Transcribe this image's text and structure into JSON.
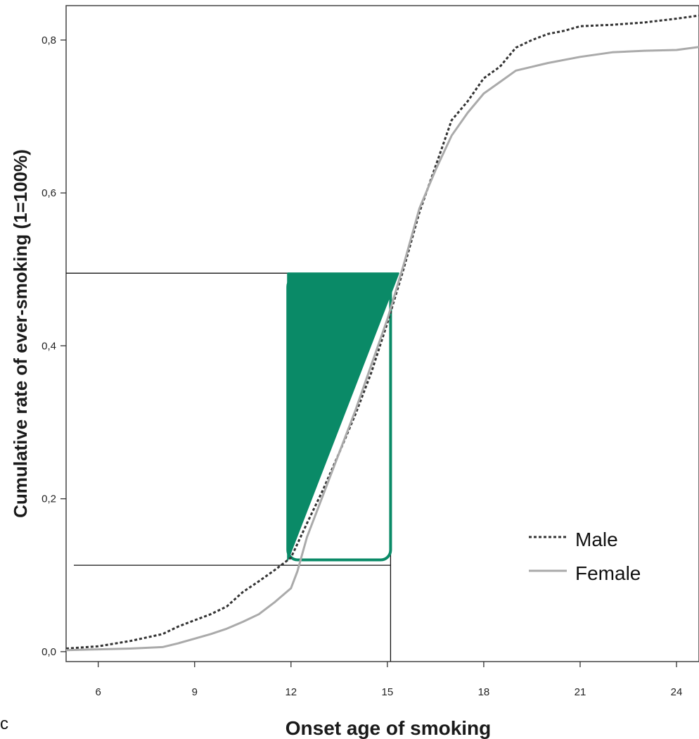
{
  "chart_data": {
    "type": "line",
    "xlabel": "Onset age of smoking",
    "ylabel": "Cumulative rate of ever-smoking (1=100%)",
    "xlim": [
      5.0,
      24.7
    ],
    "ylim": [
      -0.013,
      0.845
    ],
    "x_ticks": [
      6,
      9,
      12,
      15,
      18,
      21,
      24
    ],
    "x_tick_labels": [
      "6",
      "9",
      "12",
      "15",
      "18",
      "21",
      "24"
    ],
    "y_ticks": [
      0.0,
      0.2,
      0.4,
      0.6,
      0.8
    ],
    "y_tick_labels": [
      "0,0",
      "0,2",
      "0,4",
      "0,6",
      "0,8"
    ],
    "grid": false,
    "legend_position": "right",
    "series": [
      {
        "name": "Male",
        "style": "dotted",
        "color": "#333333",
        "x": [
          5.0,
          6.0,
          7.0,
          8.0,
          8.5,
          9.0,
          9.5,
          10.0,
          10.5,
          11.0,
          11.5,
          12.0,
          12.5,
          13.0,
          13.5,
          14.0,
          14.5,
          15.0,
          15.5,
          16.0,
          16.5,
          17.0,
          17.5,
          18.0,
          18.5,
          19.0,
          19.5,
          20.0,
          20.5,
          21.0,
          21.5,
          22.0,
          23.0,
          24.0,
          24.7
        ],
        "y": [
          0.004,
          0.007,
          0.014,
          0.023,
          0.033,
          0.041,
          0.049,
          0.059,
          0.078,
          0.092,
          0.107,
          0.123,
          0.168,
          0.212,
          0.26,
          0.31,
          0.365,
          0.43,
          0.5,
          0.575,
          0.635,
          0.695,
          0.72,
          0.75,
          0.765,
          0.79,
          0.8,
          0.808,
          0.812,
          0.818,
          0.819,
          0.82,
          0.823,
          0.828,
          0.832
        ]
      },
      {
        "name": "Female",
        "style": "solid",
        "color": "#aaaaaa",
        "x": [
          5.0,
          6.0,
          7.0,
          8.0,
          8.5,
          9.0,
          9.5,
          10.0,
          10.5,
          11.0,
          11.5,
          12.0,
          12.2,
          12.5,
          13.0,
          13.5,
          14.0,
          14.5,
          15.0,
          15.5,
          16.0,
          16.5,
          17.0,
          17.5,
          18.0,
          18.5,
          19.0,
          19.5,
          20.0,
          21.0,
          22.0,
          23.0,
          24.0,
          24.7
        ],
        "y": [
          0.002,
          0.003,
          0.004,
          0.006,
          0.011,
          0.017,
          0.023,
          0.03,
          0.039,
          0.049,
          0.065,
          0.083,
          0.105,
          0.15,
          0.205,
          0.26,
          0.315,
          0.375,
          0.435,
          0.505,
          0.58,
          0.63,
          0.675,
          0.705,
          0.73,
          0.745,
          0.76,
          0.765,
          0.77,
          0.778,
          0.784,
          0.786,
          0.787,
          0.791
        ]
      }
    ],
    "annotations": {
      "reference_lines": {
        "upper_y": 0.495,
        "lower_y": 0.113,
        "vertical_x": 15.1,
        "color": "#111111"
      },
      "highlight": {
        "box_x": [
          11.9,
          15.1
        ],
        "box_y": [
          0.12,
          0.49
        ],
        "triangle": [
          [
            11.9,
            0.495
          ],
          [
            15.35,
            0.495
          ],
          [
            11.9,
            0.12
          ]
        ],
        "color": "#0a8a67"
      }
    },
    "extra_text": "c"
  }
}
